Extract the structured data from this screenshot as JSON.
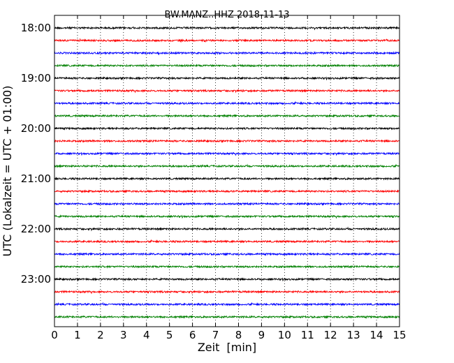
{
  "chart_data": {
    "type": "line",
    "title": "BW.MANZ..HHZ 2018-11-13",
    "xlabel": "Zeit  [min]",
    "ylabel": "UTC (Lokalzeit = UTC + 01:00)",
    "xlim": [
      0,
      15
    ],
    "x_ticks": [
      0,
      1,
      2,
      3,
      4,
      5,
      6,
      7,
      8,
      9,
      10,
      11,
      12,
      13,
      14,
      15
    ],
    "y_tick_labels": [
      "18:00",
      "19:00",
      "20:00",
      "21:00",
      "22:00",
      "23:00"
    ],
    "grid": "vertical-dotted",
    "traces_per_hour": 4,
    "trace_colors": [
      "#000000",
      "#ff0000",
      "#0000ff",
      "#008000"
    ],
    "series": [
      {
        "start": "18:00",
        "color": "#000000"
      },
      {
        "start": "18:15",
        "color": "#ff0000"
      },
      {
        "start": "18:30",
        "color": "#0000ff"
      },
      {
        "start": "18:45",
        "color": "#008000"
      },
      {
        "start": "19:00",
        "color": "#000000"
      },
      {
        "start": "19:15",
        "color": "#ff0000"
      },
      {
        "start": "19:30",
        "color": "#0000ff"
      },
      {
        "start": "19:45",
        "color": "#008000"
      },
      {
        "start": "20:00",
        "color": "#000000"
      },
      {
        "start": "20:15",
        "color": "#ff0000"
      },
      {
        "start": "20:30",
        "color": "#0000ff"
      },
      {
        "start": "20:45",
        "color": "#008000"
      },
      {
        "start": "21:00",
        "color": "#000000"
      },
      {
        "start": "21:15",
        "color": "#ff0000"
      },
      {
        "start": "21:30",
        "color": "#0000ff"
      },
      {
        "start": "21:45",
        "color": "#008000"
      },
      {
        "start": "22:00",
        "color": "#000000"
      },
      {
        "start": "22:15",
        "color": "#ff0000"
      },
      {
        "start": "22:30",
        "color": "#0000ff"
      },
      {
        "start": "22:45",
        "color": "#008000"
      },
      {
        "start": "23:00",
        "color": "#000000"
      },
      {
        "start": "23:15",
        "color": "#ff0000"
      },
      {
        "start": "23:30",
        "color": "#0000ff"
      },
      {
        "start": "23:45",
        "color": "#008000"
      }
    ]
  }
}
